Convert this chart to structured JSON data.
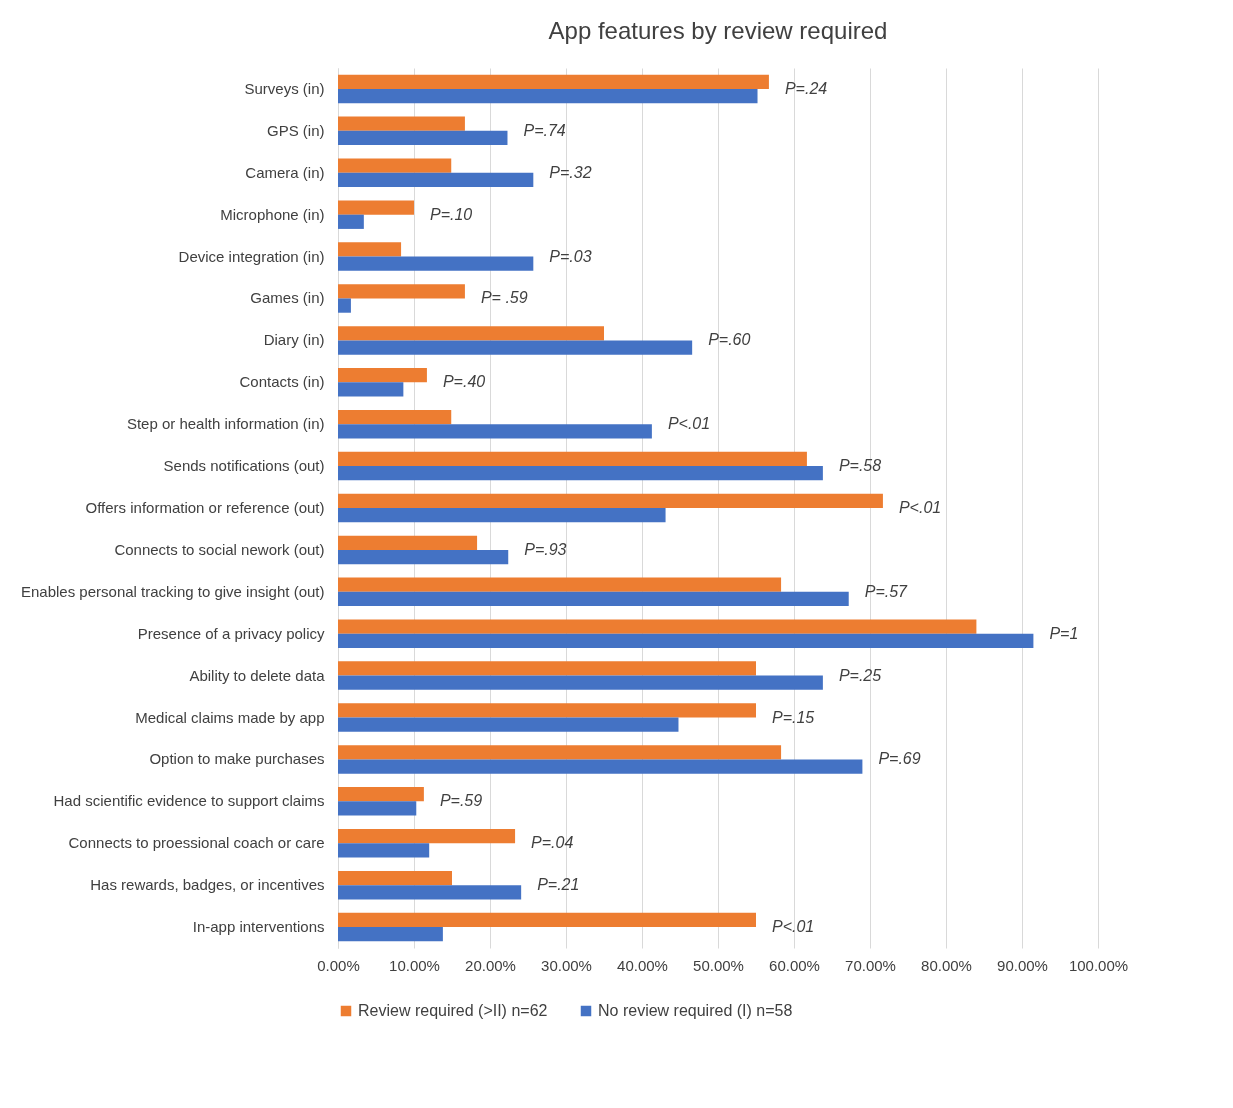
{
  "chart_data": {
    "type": "bar",
    "orientation": "horizontal",
    "title": "App features by review required",
    "categories": [
      "Surveys (in)",
      "GPS (in)",
      "Camera (in)",
      "Microphone (in)",
      "Device integration (in)",
      "Games (in)",
      "Diary (in)",
      "Contacts (in)",
      "Step or health information (in)",
      "Sends notifications (out)",
      "Offers information or reference (out)",
      "Connects to social nework (out)",
      "Enables personal tracking to give insight (out)",
      "Presence of a privacy policy",
      "Ability to delete data",
      "Medical claims made by app",
      "Option to make purchases",
      "Had scientific evidence to support claims",
      "Connects to proessional coach or care",
      "Has rewards, badges, or incentives",
      "In-app interventions"
    ],
    "series": [
      {
        "name": "Review required (>II) n=62",
        "color": "#ed7d31",
        "values": [
          56.7,
          16.7,
          14.9,
          10.0,
          8.3,
          16.7,
          35.0,
          11.7,
          14.9,
          61.7,
          71.7,
          18.3,
          58.3,
          84.0,
          55.0,
          55.0,
          58.3,
          11.3,
          23.3,
          15.0,
          55.0
        ]
      },
      {
        "name": "No review required (I) n=58",
        "color": "#4472c4",
        "values": [
          55.2,
          22.3,
          25.7,
          3.4,
          25.7,
          1.7,
          46.6,
          8.6,
          41.3,
          63.8,
          43.1,
          22.4,
          67.2,
          91.5,
          63.8,
          44.8,
          69.0,
          10.3,
          12.0,
          24.1,
          13.8
        ]
      }
    ],
    "xlim": [
      0,
      100
    ],
    "xticks": [
      {
        "value": 0,
        "label": "0.00%"
      },
      {
        "value": 10,
        "label": "10.00%"
      },
      {
        "value": 20,
        "label": "20.00%"
      },
      {
        "value": 30,
        "label": "30.00%"
      },
      {
        "value": 40,
        "label": "40.00%"
      },
      {
        "value": 50,
        "label": "50.00%"
      },
      {
        "value": 60,
        "label": "60.00%"
      },
      {
        "value": 70,
        "label": "70.00%"
      },
      {
        "value": 80,
        "label": "80.00%"
      },
      {
        "value": 90,
        "label": "90.00%"
      },
      {
        "value": 100,
        "label": "100.00%"
      }
    ],
    "grid": "x",
    "legend": "bottom",
    "annotations": [
      "P=.24",
      "P=.74",
      "P=.32",
      "P=.10",
      "P=.03",
      "P= .59",
      "P=.60",
      "P=.40",
      "P<.01",
      "P=.58",
      "P<.01",
      "P=.93",
      "P=.57",
      "P=1",
      "P=.25",
      "P=.15",
      "P=.69",
      "P=.59",
      "P=.04",
      "P=.21",
      "P<.01"
    ]
  }
}
